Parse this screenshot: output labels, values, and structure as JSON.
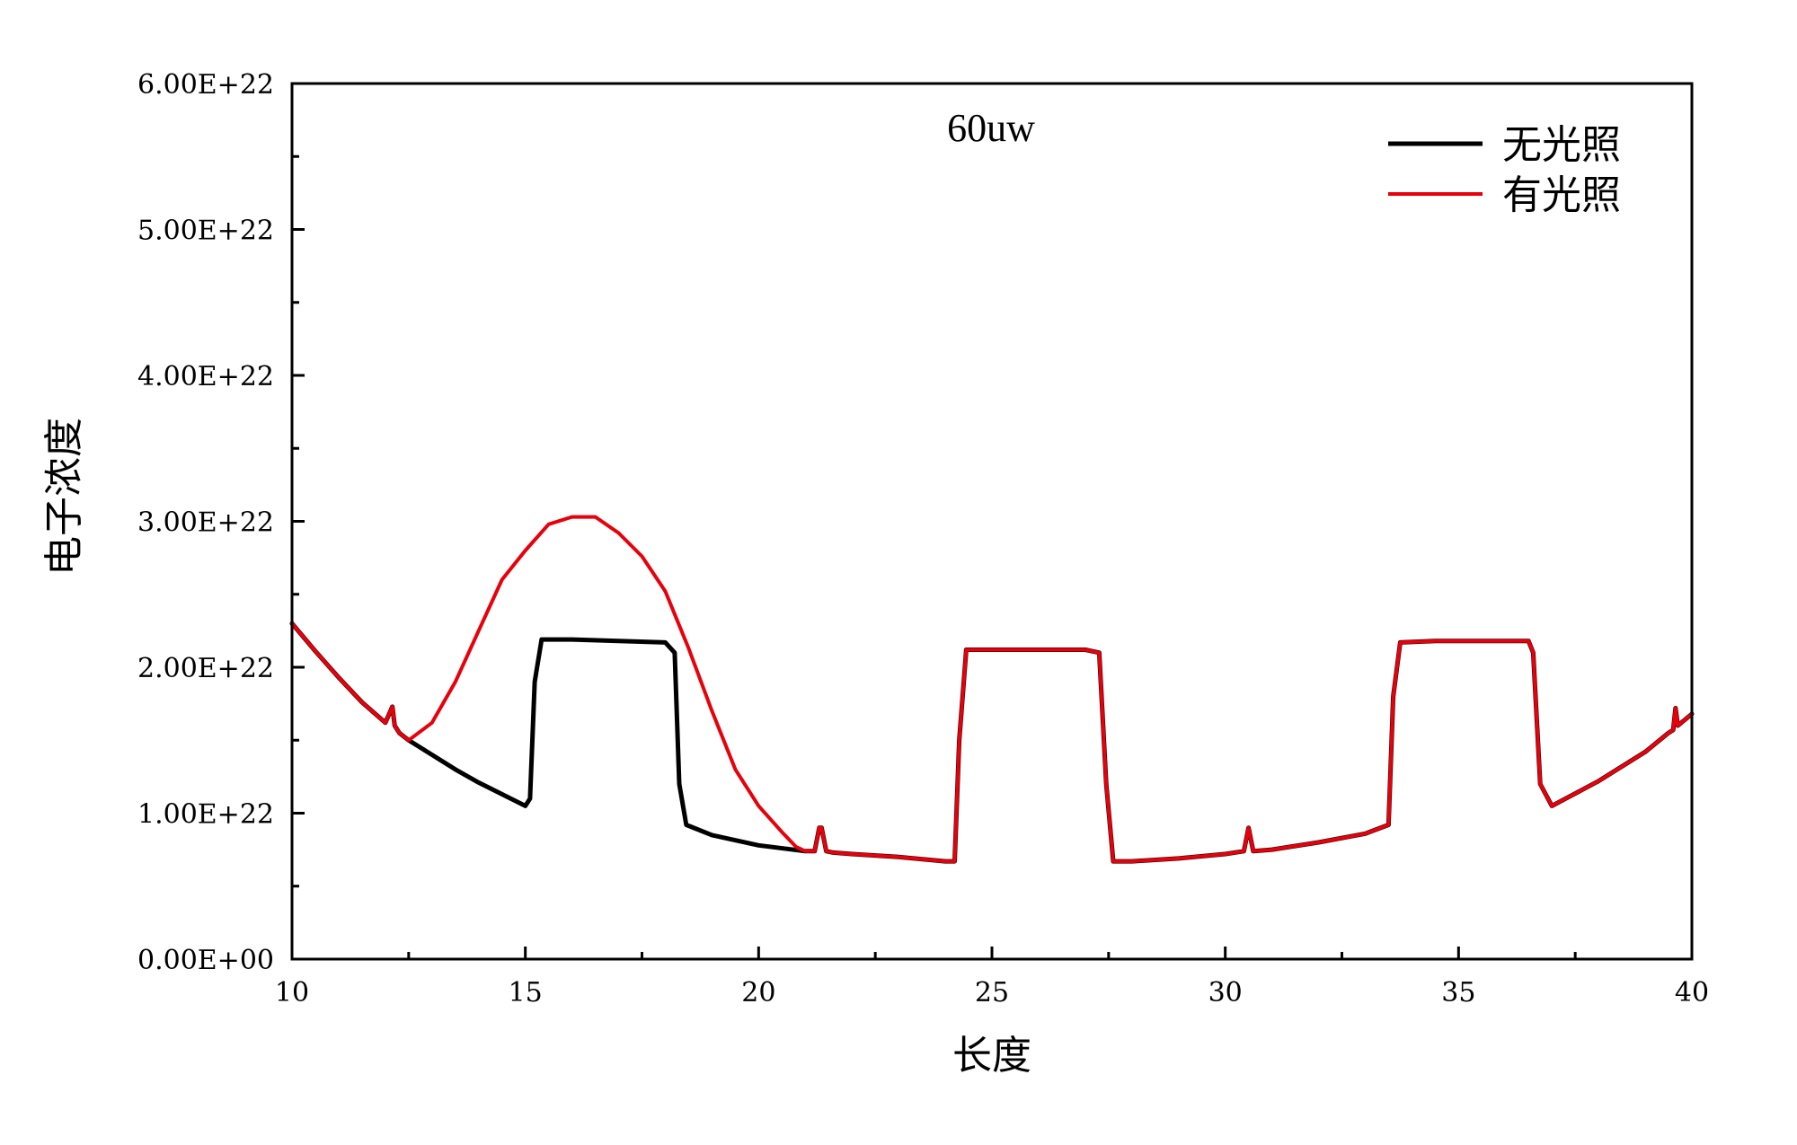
{
  "chart_data": {
    "type": "line",
    "title": "",
    "xlabel": "长度",
    "ylabel": "电子浓度",
    "annotation": "60uw",
    "xlim": [
      10,
      40
    ],
    "ylim": [
      0,
      6e+22
    ],
    "x_ticks": [
      10,
      15,
      20,
      25,
      30,
      35,
      40
    ],
    "x_tick_labels": [
      "10",
      "15",
      "20",
      "25",
      "30",
      "35",
      "40"
    ],
    "y_ticks": [
      0,
      1e+22,
      2e+22,
      3e+22,
      4e+22,
      5e+22,
      6e+22
    ],
    "y_tick_labels": [
      "0.00E+00",
      "1.00E+22",
      "2.00E+22",
      "3.00E+22",
      "4.00E+22",
      "5.00E+22",
      "6.00E+22"
    ],
    "grid": false,
    "legend_position": "top-right",
    "series": [
      {
        "name": "无光照",
        "color": "#000000",
        "x": [
          10.0,
          10.5,
          11.0,
          11.5,
          12.0,
          12.15,
          12.2,
          12.3,
          12.5,
          13.0,
          13.5,
          14.0,
          14.5,
          15.0,
          15.1,
          15.2,
          15.35,
          16.0,
          17.0,
          18.0,
          18.2,
          18.3,
          18.45,
          19.0,
          20.0,
          21.0,
          21.2,
          21.3,
          21.35,
          21.45,
          21.6,
          22.0,
          23.0,
          24.0,
          24.2,
          24.3,
          24.45,
          25.0,
          26.0,
          27.0,
          27.3,
          27.45,
          27.6,
          28.0,
          29.0,
          30.0,
          30.4,
          30.5,
          30.6,
          31.0,
          32.0,
          33.0,
          33.5,
          33.6,
          33.75,
          34.5,
          35.5,
          36.5,
          36.6,
          36.75,
          37.0,
          38.0,
          39.0,
          39.5,
          39.6,
          39.65,
          39.7,
          40.0
        ],
        "y": [
          2.3e+22,
          2.11e+22,
          1.93e+22,
          1.76e+22,
          1.62e+22,
          1.73e+22,
          1.6e+22,
          1.55e+22,
          1.5e+22,
          1.4e+22,
          1.3e+22,
          1.21e+22,
          1.13e+22,
          1.05e+22,
          1.1e+22,
          1.9e+22,
          2.19e+22,
          2.19e+22,
          2.18e+22,
          2.17e+22,
          2.1e+22,
          1.2e+22,
          9.2e+21,
          8.5e+21,
          7.8e+21,
          7.4e+21,
          7.4e+21,
          9e+21,
          9e+21,
          7.4e+21,
          7.3e+21,
          7.2e+21,
          7e+21,
          6.7e+21,
          6.7e+21,
          1.5e+22,
          2.12e+22,
          2.12e+22,
          2.12e+22,
          2.12e+22,
          2.1e+22,
          1.2e+22,
          6.7e+21,
          6.7e+21,
          6.9e+21,
          7.2e+21,
          7.4e+21,
          9e+21,
          7.4e+21,
          7.5e+21,
          8e+21,
          8.6e+21,
          9.2e+21,
          1.8e+22,
          2.17e+22,
          2.18e+22,
          2.18e+22,
          2.18e+22,
          2.1e+22,
          1.2e+22,
          1.05e+22,
          1.22e+22,
          1.42e+22,
          1.55e+22,
          1.57e+22,
          1.72e+22,
          1.6e+22,
          1.68e+22
        ]
      },
      {
        "name": "有光照",
        "color": "#e8000b",
        "x": [
          10.0,
          10.5,
          11.0,
          11.5,
          12.0,
          12.15,
          12.2,
          12.3,
          12.5,
          13.0,
          13.5,
          14.0,
          14.5,
          15.0,
          15.5,
          16.0,
          16.5,
          17.0,
          17.5,
          18.0,
          18.5,
          19.0,
          19.5,
          20.0,
          20.5,
          20.8,
          21.0,
          21.2,
          21.3,
          21.35,
          21.45,
          21.6,
          22.0,
          23.0,
          24.0,
          24.2,
          24.3,
          24.45,
          25.0,
          26.0,
          27.0,
          27.3,
          27.45,
          27.6,
          28.0,
          29.0,
          30.0,
          30.4,
          30.5,
          30.6,
          31.0,
          32.0,
          33.0,
          33.5,
          33.6,
          33.75,
          34.5,
          35.5,
          36.5,
          36.6,
          36.75,
          37.0,
          38.0,
          39.0,
          39.5,
          39.6,
          39.65,
          39.7,
          40.0
        ],
        "y": [
          2.3e+22,
          2.11e+22,
          1.93e+22,
          1.76e+22,
          1.62e+22,
          1.73e+22,
          1.6e+22,
          1.55e+22,
          1.5e+22,
          1.62e+22,
          1.9e+22,
          2.25e+22,
          2.6e+22,
          2.8e+22,
          2.98e+22,
          3.03e+22,
          3.03e+22,
          2.92e+22,
          2.76e+22,
          2.52e+22,
          2.13e+22,
          1.7e+22,
          1.3e+22,
          1.05e+22,
          8.7e+21,
          7.7e+21,
          7.4e+21,
          7.4e+21,
          9e+21,
          9e+21,
          7.4e+21,
          7.3e+21,
          7.2e+21,
          7e+21,
          6.7e+21,
          6.7e+21,
          1.5e+22,
          2.12e+22,
          2.12e+22,
          2.12e+22,
          2.12e+22,
          2.1e+22,
          1.2e+22,
          6.7e+21,
          6.7e+21,
          6.9e+21,
          7.2e+21,
          7.4e+21,
          9e+21,
          7.4e+21,
          7.5e+21,
          8e+21,
          8.6e+21,
          9.2e+21,
          1.8e+22,
          2.17e+22,
          2.18e+22,
          2.18e+22,
          2.18e+22,
          2.1e+22,
          1.2e+22,
          1.05e+22,
          1.22e+22,
          1.42e+22,
          1.55e+22,
          1.57e+22,
          1.72e+22,
          1.6e+22,
          1.68e+22
        ]
      }
    ]
  }
}
